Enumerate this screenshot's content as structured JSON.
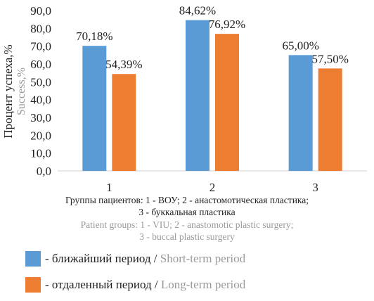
{
  "chart_data": {
    "type": "bar",
    "categories": [
      "1",
      "2",
      "3"
    ],
    "series": [
      {
        "name_ru": "- ближайший период",
        "name_en": "Short-term period",
        "color": "#5b9bd5",
        "values": [
          70.18,
          84.62,
          65.0
        ],
        "labels": [
          "70,18%",
          "84,62%",
          "65,00%"
        ]
      },
      {
        "name_ru": "- отдаленный период",
        "name_en": "Long-term period",
        "color": "#ed7d31",
        "values": [
          54.39,
          76.92,
          57.5
        ],
        "labels": [
          "54,39%",
          "76,92%",
          "57,50%"
        ]
      }
    ],
    "ylim": [
      0,
      90
    ],
    "y_ticks": [
      "0,0",
      "10,0",
      "20,0",
      "30,0",
      "40,0",
      "50,0",
      "60,0",
      "70,0",
      "80,0",
      "90,0"
    ],
    "ylabel_ru": "Процент успеха,%",
    "ylabel_en": "Success,%",
    "xlabel_ru": [
      "Группы пациентов: 1 - ВОУ; 2 - анастомотическая пластика;",
      "3 - буккальная пластика"
    ],
    "xlabel_en": [
      "Patient groups: 1 - VIU; 2 - anastomotic plastic surgery;",
      "3 - buccal plastic surgery"
    ],
    "grid": false,
    "legend_position": "bottom-left"
  },
  "legend_separator": " / "
}
